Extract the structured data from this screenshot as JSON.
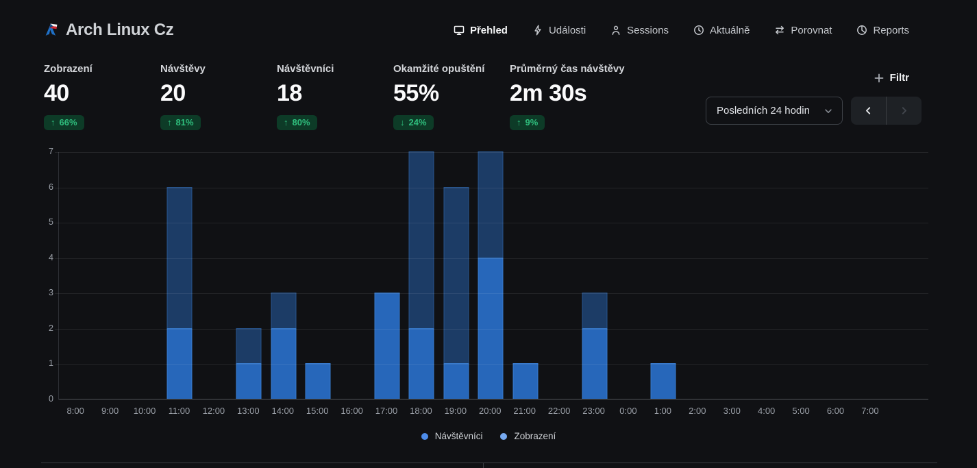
{
  "brand": {
    "title": "Arch Linux Cz"
  },
  "nav": {
    "items": [
      {
        "label": "Přehled",
        "icon": "monitor-icon",
        "active": true
      },
      {
        "label": "Události",
        "icon": "lightning-icon",
        "active": false
      },
      {
        "label": "Sessions",
        "icon": "person-icon",
        "active": false
      },
      {
        "label": "Aktuálně",
        "icon": "clock-icon",
        "active": false
      },
      {
        "label": "Porovnat",
        "icon": "compare-arrows-icon",
        "active": false
      },
      {
        "label": "Reports",
        "icon": "pie-chart-icon",
        "active": false
      }
    ]
  },
  "stats": [
    {
      "label": "Zobrazení",
      "value": "40",
      "arrow": "↑",
      "change": "66%"
    },
    {
      "label": "Návštěvy",
      "value": "20",
      "arrow": "↑",
      "change": "81%"
    },
    {
      "label": "Návštěvníci",
      "value": "18",
      "arrow": "↑",
      "change": "80%"
    },
    {
      "label": "Okamžité opuštění",
      "value": "55%",
      "arrow": "↓",
      "change": "24%"
    },
    {
      "label": "Průměrný čas návštěvy",
      "value": "2m 30s",
      "arrow": "↑",
      "change": "9%"
    }
  ],
  "toolbar": {
    "filter_label": "Filtr",
    "date_range": "Posledních 24 hodin"
  },
  "colors": {
    "badge_bg": "#0d3b27",
    "badge_text": "#2fbe7d",
    "visitors_bar": "#2767ba",
    "views_bar": "#1c3c66",
    "legend_visitors_dot": "#4d8cea",
    "legend_views_dot": "#77aaf0"
  },
  "chart_data": {
    "type": "bar",
    "title": "",
    "xlabel": "",
    "ylabel": "",
    "categories": [
      "8:00",
      "9:00",
      "10:00",
      "11:00",
      "12:00",
      "13:00",
      "14:00",
      "15:00",
      "16:00",
      "17:00",
      "18:00",
      "19:00",
      "20:00",
      "21:00",
      "22:00",
      "23:00",
      "0:00",
      "1:00",
      "2:00",
      "3:00",
      "4:00",
      "5:00",
      "6:00",
      "7:00"
    ],
    "series": [
      {
        "name": "Zobrazení",
        "values": [
          0,
          0,
          0,
          6,
          0,
          2,
          3,
          1,
          0,
          3,
          7,
          6,
          7,
          1,
          0,
          3,
          0,
          1,
          0,
          0,
          0,
          0,
          0,
          0
        ]
      },
      {
        "name": "Návštěvníci",
        "values": [
          0,
          0,
          0,
          2,
          0,
          1,
          2,
          1,
          0,
          3,
          2,
          1,
          4,
          1,
          0,
          2,
          0,
          1,
          0,
          0,
          0,
          0,
          0,
          0
        ]
      }
    ],
    "overlay": "views bar behind, visitors bar in front, bottom aligned",
    "ylim": [
      0,
      7
    ],
    "yticks": [
      0,
      1,
      2,
      3,
      4,
      5,
      6,
      7
    ],
    "grid": true,
    "legend_position": "bottom",
    "legend": [
      {
        "label": "Návštěvníci"
      },
      {
        "label": "Zobrazení"
      }
    ]
  }
}
